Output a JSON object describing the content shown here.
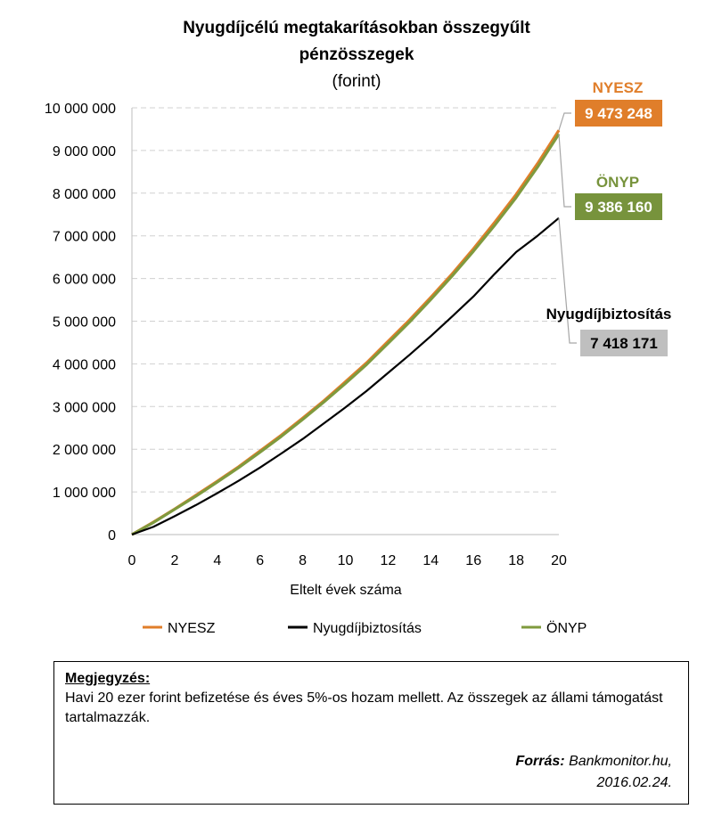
{
  "chart_data": {
    "type": "line",
    "title_line1": "Nyugdíjcélú megtakarításokban összegyűlt",
    "title_line2": "pénzösszegek",
    "subtitle": "(forint)",
    "xlabel": "Eltelt évek száma",
    "ylabel": "",
    "xlim": [
      0,
      20
    ],
    "ylim": [
      0,
      10000000
    ],
    "x_ticks": [
      "0",
      "2",
      "4",
      "6",
      "8",
      "10",
      "12",
      "14",
      "16",
      "18",
      "20"
    ],
    "y_ticks": [
      "0",
      "1 000 000",
      "2 000 000",
      "3 000 000",
      "4 000 000",
      "5 000 000",
      "6 000 000",
      "7 000 000",
      "8 000 000",
      "9 000 000",
      "10 000 000"
    ],
    "grid": true,
    "legend_position": "bottom",
    "x": [
      0,
      1,
      2,
      3,
      4,
      5,
      6,
      7,
      8,
      9,
      10,
      11,
      12,
      13,
      14,
      15,
      16,
      17,
      18,
      19,
      20
    ],
    "series": [
      {
        "name": "NYESZ",
        "color": "#E07E2A",
        "values": [
          0,
          290000,
          600000,
          920000,
          1250000,
          1590000,
          1960000,
          2330000,
          2730000,
          3140000,
          3580000,
          4030000,
          4530000,
          5030000,
          5560000,
          6110000,
          6700000,
          7320000,
          7970000,
          8690000,
          9473248
        ]
      },
      {
        "name": "Nyugdíjbiztosítás",
        "color": "#000000",
        "values": [
          0,
          180000,
          430000,
          690000,
          970000,
          1260000,
          1570000,
          1900000,
          2240000,
          2610000,
          2980000,
          3370000,
          3790000,
          4210000,
          4650000,
          5110000,
          5580000,
          6110000,
          6620000,
          7000000,
          7418171
        ]
      },
      {
        "name": "ÖNYP",
        "color": "#7F9A3E",
        "values": [
          0,
          280000,
          590000,
          900000,
          1230000,
          1570000,
          1930000,
          2300000,
          2700000,
          3110000,
          3540000,
          3990000,
          4480000,
          4980000,
          5510000,
          6060000,
          6640000,
          7250000,
          7900000,
          8610000,
          9386160
        ]
      }
    ],
    "callouts": [
      {
        "name": "NYESZ",
        "value": "9 473 248",
        "name_color": "#E07E2A",
        "box_color": "#E07E2A",
        "value_color": "#ffffff"
      },
      {
        "name": "ÖNYP",
        "value": "9 386 160",
        "name_color": "#77933C",
        "box_color": "#77933C",
        "value_color": "#ffffff"
      },
      {
        "name": "Nyugdíjbiztosítás",
        "value": "7 418 171",
        "name_color": "#000000",
        "box_color": "#BFBFBF",
        "value_color": "#000000"
      }
    ]
  },
  "note": {
    "heading": "Megjegyzés:",
    "text": "Havi 20 ezer forint befizetése és éves 5%-os hozam mellett. Az összegek az állami támogatást tartalmazzák.",
    "source_label": "Forrás:",
    "source_value": "Bankmonitor.hu,",
    "source_date": "2016.02.24."
  }
}
